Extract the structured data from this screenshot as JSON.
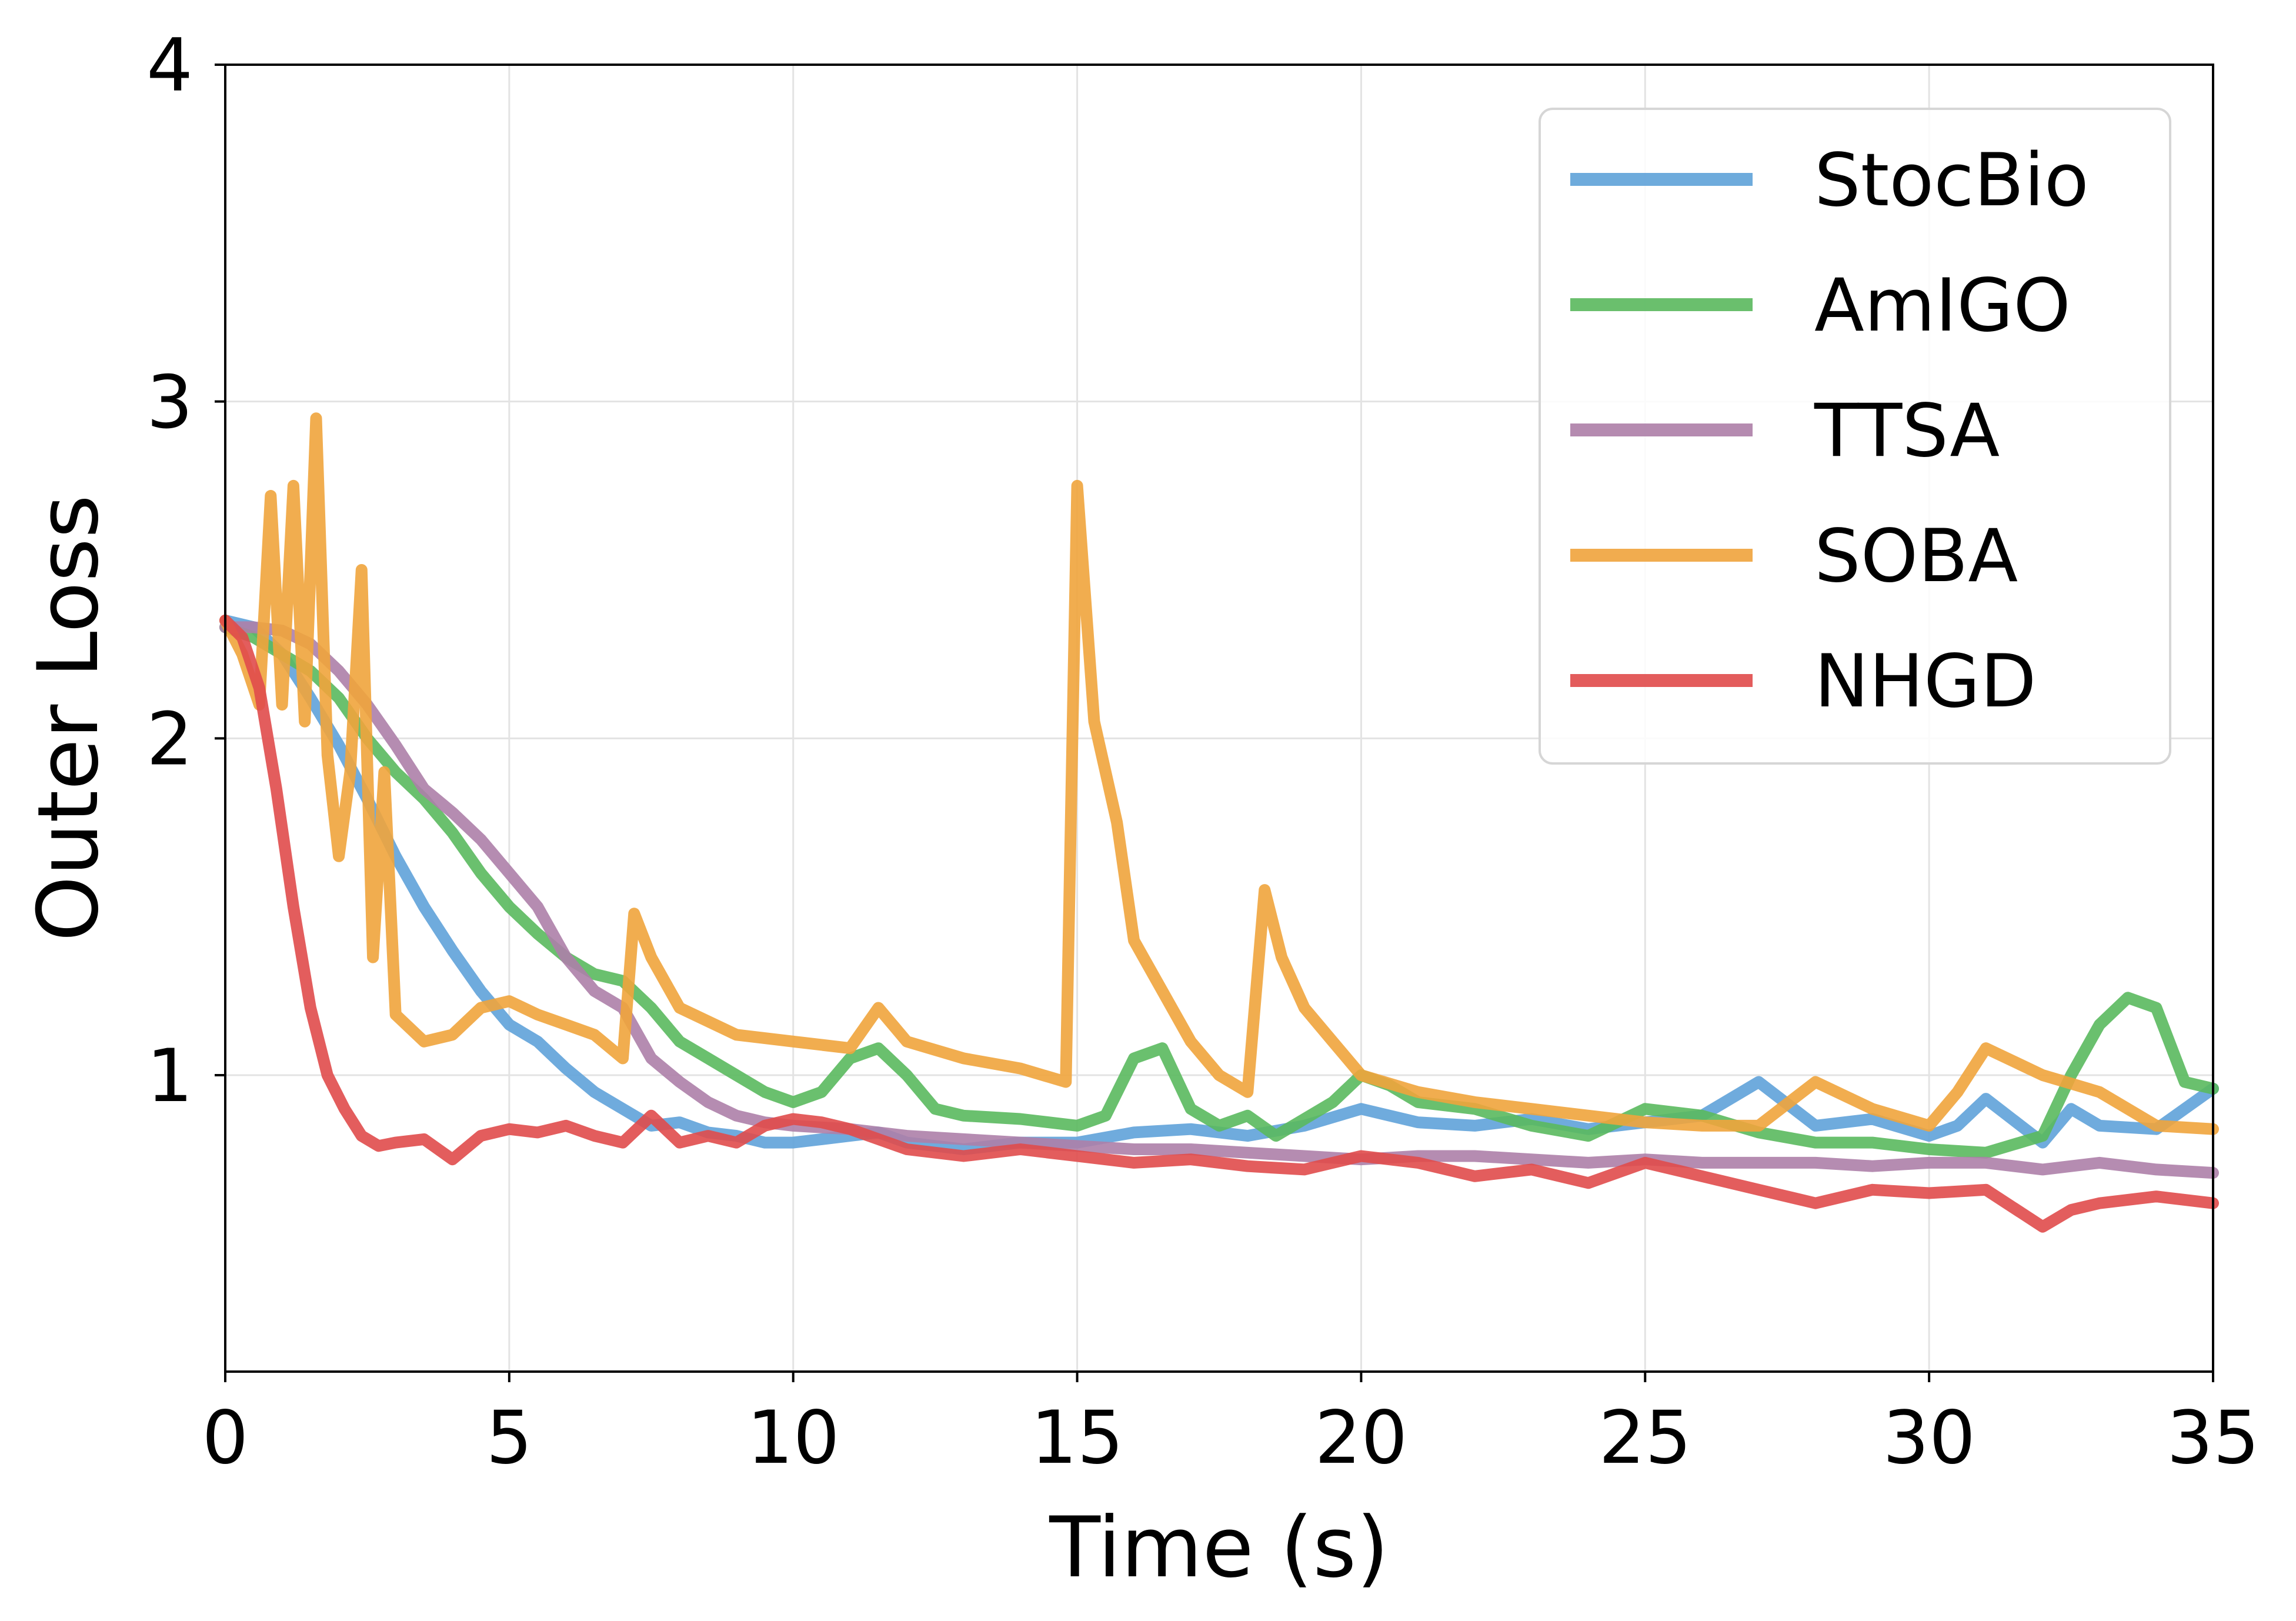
{
  "chart_data": {
    "type": "line",
    "title": "",
    "xlabel": "Time (s)",
    "ylabel": "Outer Loss",
    "xlim": [
      0,
      35
    ],
    "ylim": [
      0.12,
      4
    ],
    "xticks": [
      0,
      5,
      10,
      15,
      20,
      25,
      30,
      35
    ],
    "xtick_labels": [
      "0",
      "5",
      "10",
      "15",
      "20",
      "25",
      "30",
      "35"
    ],
    "yticks": [
      1,
      2,
      3,
      4
    ],
    "ytick_labels": [
      "1",
      "2",
      "3",
      "4"
    ],
    "grid": true,
    "legend_position": "top-right",
    "series": [
      {
        "name": "StocBio",
        "color": "#5fa2d9",
        "x": [
          0,
          0.5,
          1,
          1.5,
          2,
          2.5,
          3,
          3.5,
          4,
          4.5,
          5,
          5.5,
          6,
          6.5,
          7,
          7.5,
          8,
          8.5,
          9,
          9.5,
          10,
          10.5,
          11,
          11.5,
          12,
          13,
          14,
          15,
          16,
          17,
          18,
          19,
          20,
          21,
          22,
          23,
          24,
          25,
          26,
          27,
          28,
          29,
          30,
          30.5,
          31,
          32,
          32.5,
          33,
          34,
          35
        ],
        "y": [
          2.35,
          2.33,
          2.25,
          2.12,
          1.98,
          1.82,
          1.65,
          1.5,
          1.37,
          1.25,
          1.15,
          1.1,
          1.02,
          0.95,
          0.9,
          0.85,
          0.86,
          0.83,
          0.82,
          0.8,
          0.8,
          0.81,
          0.82,
          0.83,
          0.8,
          0.78,
          0.8,
          0.8,
          0.83,
          0.84,
          0.82,
          0.85,
          0.9,
          0.86,
          0.85,
          0.87,
          0.84,
          0.86,
          0.88,
          0.98,
          0.85,
          0.87,
          0.82,
          0.85,
          0.93,
          0.8,
          0.9,
          0.85,
          0.84,
          0.96
        ]
      },
      {
        "name": "AmIGO",
        "color": "#5ab95e",
        "x": [
          0,
          0.5,
          1,
          1.5,
          2,
          2.5,
          3,
          3.5,
          4,
          4.5,
          5,
          5.5,
          6,
          6.5,
          7,
          7.5,
          8,
          8.5,
          9,
          9.5,
          10,
          10.5,
          11,
          11.5,
          12,
          12.5,
          13,
          14,
          15,
          15.5,
          16,
          16.5,
          17,
          17.5,
          18,
          18.5,
          19,
          19.5,
          20,
          20.5,
          21,
          22,
          23,
          24,
          25,
          26,
          27,
          28,
          29,
          30,
          31,
          32,
          32.5,
          33,
          33.5,
          34,
          34.5,
          35
        ],
        "y": [
          2.33,
          2.3,
          2.25,
          2.2,
          2.12,
          2.0,
          1.9,
          1.82,
          1.72,
          1.6,
          1.5,
          1.42,
          1.35,
          1.3,
          1.28,
          1.2,
          1.1,
          1.05,
          1.0,
          0.95,
          0.92,
          0.95,
          1.05,
          1.08,
          1.0,
          0.9,
          0.88,
          0.87,
          0.85,
          0.88,
          1.05,
          1.08,
          0.9,
          0.85,
          0.88,
          0.82,
          0.87,
          0.92,
          1.0,
          0.97,
          0.92,
          0.9,
          0.85,
          0.82,
          0.9,
          0.88,
          0.83,
          0.8,
          0.8,
          0.78,
          0.77,
          0.82,
          1.0,
          1.15,
          1.23,
          1.2,
          0.98,
          0.96
        ]
      },
      {
        "name": "TTSA",
        "color": "#ad7fa8",
        "x": [
          0,
          0.5,
          1,
          1.5,
          2,
          2.5,
          3,
          3.5,
          4,
          4.5,
          5,
          5.5,
          6,
          6.5,
          7,
          7.5,
          8,
          8.5,
          9,
          9.5,
          10,
          11,
          12,
          13,
          14,
          15,
          16,
          17,
          18,
          19,
          20,
          21,
          22,
          23,
          24,
          25,
          26,
          27,
          28,
          29,
          30,
          31,
          32,
          33,
          34,
          35
        ],
        "y": [
          2.33,
          2.33,
          2.32,
          2.28,
          2.2,
          2.1,
          1.98,
          1.85,
          1.78,
          1.7,
          1.6,
          1.5,
          1.35,
          1.25,
          1.2,
          1.05,
          0.98,
          0.92,
          0.88,
          0.86,
          0.85,
          0.84,
          0.82,
          0.81,
          0.8,
          0.79,
          0.78,
          0.78,
          0.77,
          0.76,
          0.75,
          0.76,
          0.76,
          0.75,
          0.74,
          0.75,
          0.74,
          0.74,
          0.74,
          0.73,
          0.74,
          0.74,
          0.72,
          0.74,
          0.72,
          0.71
        ]
      },
      {
        "name": "SOBA",
        "color": "#f0a43c",
        "x": [
          0,
          0.3,
          0.6,
          0.8,
          1,
          1.2,
          1.4,
          1.6,
          1.8,
          2,
          2.2,
          2.4,
          2.6,
          2.8,
          3,
          3.5,
          4,
          4.5,
          5,
          5.5,
          6,
          6.5,
          7,
          7.2,
          7.5,
          8,
          9,
          10,
          11,
          11.5,
          12,
          13,
          14,
          14.8,
          15,
          15.3,
          15.7,
          16,
          16.5,
          17,
          17.5,
          18,
          18.3,
          18.6,
          19,
          19.5,
          20,
          21,
          22,
          23,
          24,
          25,
          26,
          27,
          28,
          29,
          30,
          30.5,
          31,
          32,
          33,
          34,
          35
        ],
        "y": [
          2.35,
          2.25,
          2.1,
          2.72,
          2.1,
          2.75,
          2.05,
          2.95,
          1.95,
          1.65,
          1.9,
          2.5,
          1.35,
          1.9,
          1.18,
          1.1,
          1.12,
          1.2,
          1.22,
          1.18,
          1.15,
          1.12,
          1.05,
          1.48,
          1.35,
          1.2,
          1.12,
          1.1,
          1.08,
          1.2,
          1.1,
          1.05,
          1.02,
          0.98,
          2.75,
          2.05,
          1.75,
          1.4,
          1.25,
          1.1,
          1.0,
          0.95,
          1.55,
          1.35,
          1.2,
          1.1,
          1.0,
          0.95,
          0.92,
          0.9,
          0.88,
          0.86,
          0.85,
          0.85,
          0.98,
          0.9,
          0.85,
          0.95,
          1.08,
          1.0,
          0.95,
          0.85,
          0.84
        ]
      },
      {
        "name": "NHGD",
        "color": "#e04b4b",
        "x": [
          0,
          0.3,
          0.6,
          0.9,
          1.2,
          1.5,
          1.8,
          2.1,
          2.4,
          2.7,
          3,
          3.5,
          4,
          4.5,
          5,
          5.5,
          6,
          6.5,
          7,
          7.5,
          8,
          8.5,
          9,
          9.5,
          10,
          10.5,
          11,
          12,
          13,
          14,
          15,
          16,
          17,
          18,
          19,
          20,
          21,
          22,
          23,
          24,
          25,
          26,
          27,
          28,
          29,
          30,
          31,
          32,
          32.5,
          33,
          34,
          35
        ],
        "y": [
          2.35,
          2.3,
          2.15,
          1.85,
          1.5,
          1.2,
          1.0,
          0.9,
          0.82,
          0.79,
          0.8,
          0.81,
          0.75,
          0.82,
          0.84,
          0.83,
          0.85,
          0.82,
          0.8,
          0.88,
          0.8,
          0.82,
          0.8,
          0.85,
          0.87,
          0.86,
          0.84,
          0.78,
          0.76,
          0.78,
          0.76,
          0.74,
          0.75,
          0.73,
          0.72,
          0.76,
          0.74,
          0.7,
          0.72,
          0.68,
          0.74,
          0.7,
          0.66,
          0.62,
          0.66,
          0.65,
          0.66,
          0.55,
          0.6,
          0.62,
          0.64,
          0.62
        ]
      }
    ]
  }
}
